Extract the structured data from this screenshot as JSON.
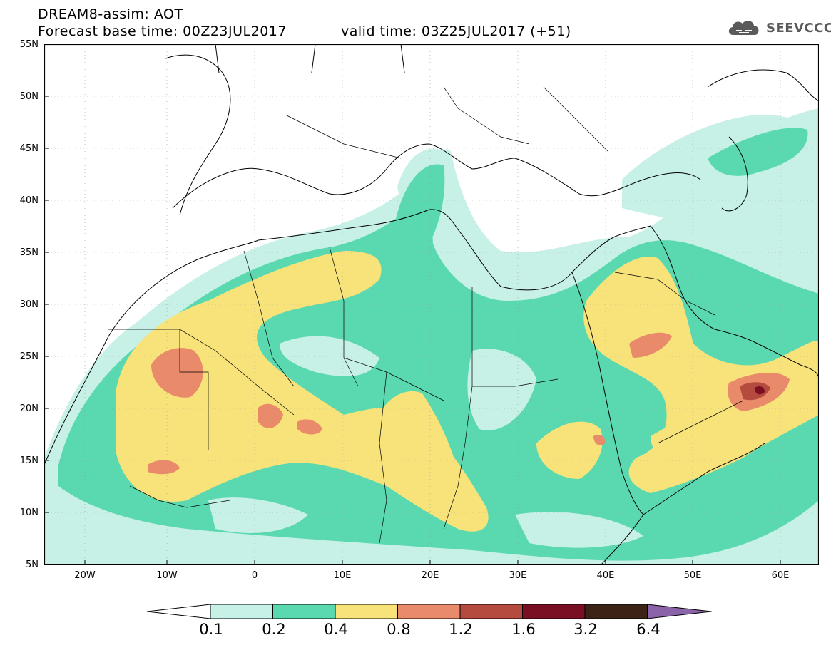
{
  "header": {
    "title_line1": "DREAM8-assim: AOT",
    "title_line2_base": "Forecast base time: 00Z23JUL2017",
    "title_line2_valid": "valid time: 03Z25JUL2017 (+51)",
    "logo_text": "SEEVCCC"
  },
  "map": {
    "lat_labels": [
      "55N",
      "50N",
      "45N",
      "40N",
      "35N",
      "30N",
      "25N",
      "20N",
      "15N",
      "10N",
      "5N"
    ],
    "lon_labels": [
      "20W",
      "10W",
      "0",
      "10E",
      "20E",
      "30E",
      "40E",
      "50E",
      "60E"
    ]
  },
  "colorbar": {
    "labels": [
      "0.1",
      "0.2",
      "0.4",
      "0.8",
      "1.2",
      "1.6",
      "3.2",
      "6.4"
    ],
    "colors": [
      "#ffffff",
      "#c7f0e6",
      "#5ad9b0",
      "#f7e37a",
      "#e98a6a",
      "#b54a3e",
      "#7a0f24",
      "#3b2416",
      "#8a63a8"
    ]
  }
}
